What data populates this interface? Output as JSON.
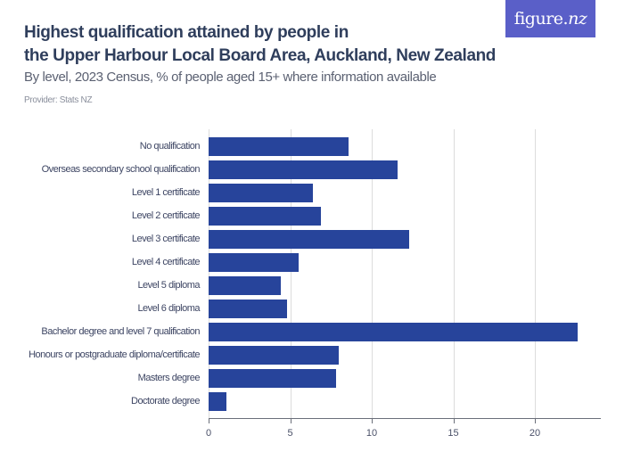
{
  "header": {
    "title_line1": "Highest qualification attained by people in",
    "title_line2": "the Upper Harbour Local Board Area, Auckland, New Zealand",
    "subtitle": "By level, 2023 Census, % of people aged 15+ where information available",
    "provider": "Provider: Stats NZ"
  },
  "logo": {
    "text_main": "figure.",
    "text_accent": "nz",
    "background": "#5a5fc8"
  },
  "colors": {
    "bar": "#27449b",
    "grid": "#dcdcdc",
    "axis": "#6b6f7a",
    "title": "#2f3e5c"
  },
  "chart_data": {
    "type": "bar",
    "orientation": "horizontal",
    "title": "Highest qualification attained by people in the Upper Harbour Local Board Area, Auckland, New Zealand",
    "subtitle": "By level, 2023 Census, % of people aged 15+ where information available",
    "xlabel": "",
    "ylabel": "",
    "categories": [
      "No qualification",
      "Overseas secondary school qualification",
      "Level 1 certificate",
      "Level 2 certificate",
      "Level 3 certificate",
      "Level 4 certificate",
      "Level 5 diploma",
      "Level 6 diploma",
      "Bachelor degree and level 7 qualification",
      "Honours or postgraduate diploma/certificate",
      "Masters degree",
      "Doctorate degree"
    ],
    "values": [
      8.6,
      11.6,
      6.4,
      6.9,
      12.3,
      5.5,
      4.4,
      4.8,
      22.6,
      8.0,
      7.8,
      1.1
    ],
    "xlim": [
      0,
      24
    ],
    "xticks": [
      0,
      5,
      10,
      15,
      20
    ],
    "xtick_labels": [
      "0",
      "5",
      "10",
      "15",
      "20"
    ],
    "grid": true,
    "legend": "none"
  }
}
